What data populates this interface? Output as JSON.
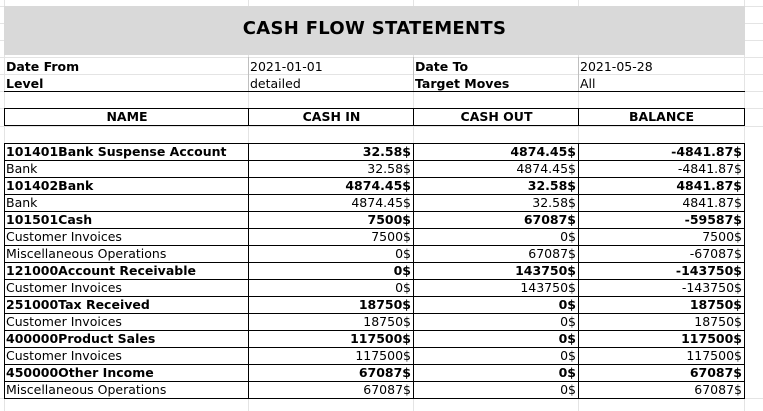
{
  "report": {
    "title": "CASH FLOW STATEMENTS"
  },
  "filters": {
    "date_from_label": "Date From",
    "date_from_value": "2021-01-01",
    "date_to_label": "Date To",
    "date_to_value": "2021-05-28",
    "level_label": "Level",
    "level_value": "detailed",
    "target_moves_label": "Target Moves",
    "target_moves_value": "All"
  },
  "table": {
    "columns": [
      "NAME",
      "CASH IN",
      "CASH OUT",
      "BALANCE"
    ],
    "rows": [
      {
        "name": "101401Bank Suspense Account",
        "cash_in": "32.58$",
        "cash_out": "4874.45$",
        "balance": "-4841.87$",
        "bold": true
      },
      {
        "name": "Bank",
        "cash_in": "32.58$",
        "cash_out": "4874.45$",
        "balance": "-4841.87$",
        "bold": false
      },
      {
        "name": "101402Bank",
        "cash_in": "4874.45$",
        "cash_out": "32.58$",
        "balance": "4841.87$",
        "bold": true
      },
      {
        "name": "Bank",
        "cash_in": "4874.45$",
        "cash_out": "32.58$",
        "balance": "4841.87$",
        "bold": false
      },
      {
        "name": "101501Cash",
        "cash_in": "7500$",
        "cash_out": "67087$",
        "balance": "-59587$",
        "bold": true
      },
      {
        "name": "Customer Invoices",
        "cash_in": "7500$",
        "cash_out": "0$",
        "balance": "7500$",
        "bold": false
      },
      {
        "name": "Miscellaneous Operations",
        "cash_in": "0$",
        "cash_out": "67087$",
        "balance": "-67087$",
        "bold": false
      },
      {
        "name": "121000Account Receivable",
        "cash_in": "0$",
        "cash_out": "143750$",
        "balance": "-143750$",
        "bold": true
      },
      {
        "name": "Customer Invoices",
        "cash_in": "0$",
        "cash_out": "143750$",
        "balance": "-143750$",
        "bold": false
      },
      {
        "name": "251000Tax Received",
        "cash_in": "18750$",
        "cash_out": "0$",
        "balance": "18750$",
        "bold": true
      },
      {
        "name": "Customer Invoices",
        "cash_in": "18750$",
        "cash_out": "0$",
        "balance": "18750$",
        "bold": false
      },
      {
        "name": "400000Product Sales",
        "cash_in": "117500$",
        "cash_out": "0$",
        "balance": "117500$",
        "bold": true
      },
      {
        "name": "Customer Invoices",
        "cash_in": "117500$",
        "cash_out": "0$",
        "balance": "117500$",
        "bold": false
      },
      {
        "name": "450000Other Income",
        "cash_in": "67087$",
        "cash_out": "0$",
        "balance": "67087$",
        "bold": true
      },
      {
        "name": "Miscellaneous Operations",
        "cash_in": "67087$",
        "cash_out": "0$",
        "balance": "67087$",
        "bold": false
      }
    ]
  }
}
